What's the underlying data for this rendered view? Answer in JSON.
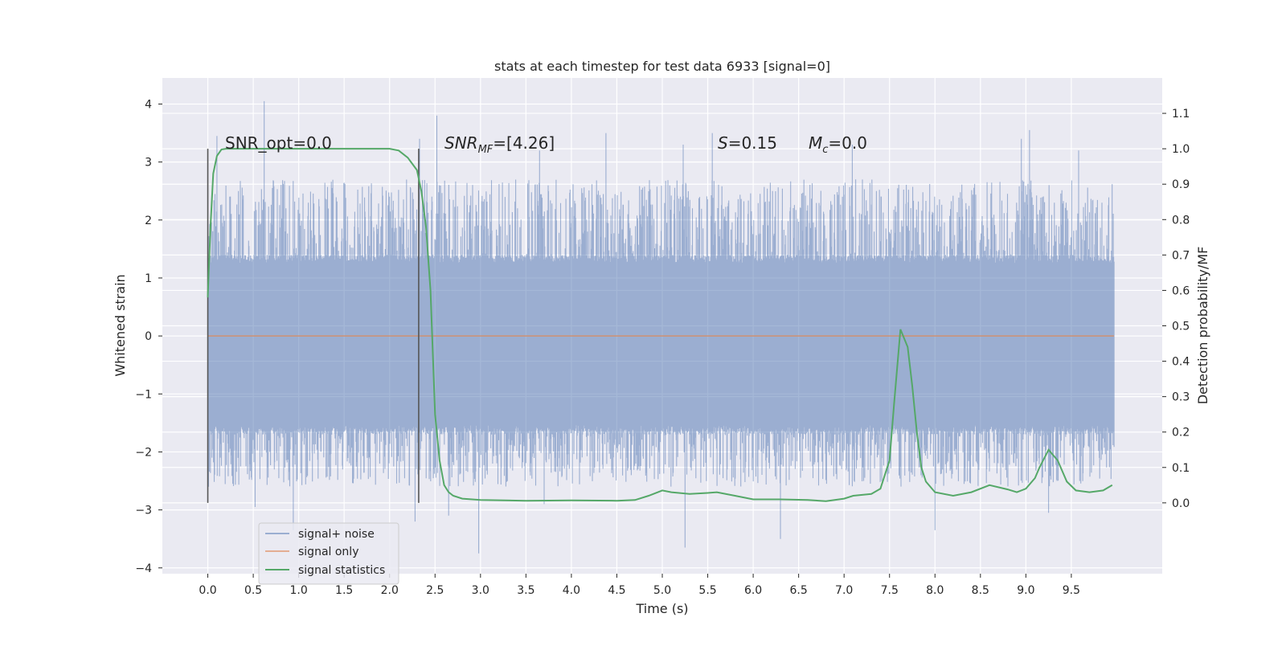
{
  "chart_data": {
    "type": "line",
    "title": "stats at each timestep for test data 6933 [signal=0]",
    "xlabel": "Time (s)",
    "ylabel_left": "Whitened strain",
    "ylabel_right": "Detection probability/MF",
    "xlim": [
      -0.5,
      10.5
    ],
    "ylim_left": [
      -4.1,
      4.45
    ],
    "ylim_right": [
      -0.2,
      1.2
    ],
    "x_ticks": [
      "0.0",
      "0.5",
      "1.0",
      "1.5",
      "2.0",
      "2.5",
      "3.0",
      "3.5",
      "4.0",
      "4.5",
      "5.0",
      "5.5",
      "6.0",
      "6.5",
      "7.0",
      "7.5",
      "8.0",
      "8.5",
      "9.0",
      "9.5"
    ],
    "y_ticks_left": [
      "−4",
      "−3",
      "−2",
      "−1",
      "0",
      "1",
      "2",
      "3",
      "4"
    ],
    "y_ticks_right": [
      "0.0",
      "0.1",
      "0.2",
      "0.3",
      "0.4",
      "0.5",
      "0.6",
      "0.7",
      "0.8",
      "0.9",
      "1.0",
      "1.1"
    ],
    "grid": true,
    "legend_placement": "lower-left",
    "legend": [
      {
        "label": "signal+ noise",
        "color": "#4c72b0"
      },
      {
        "label": "signal only",
        "color": "#dd8452"
      },
      {
        "label": "signal statistics",
        "color": "#55a868"
      }
    ],
    "annotations": [
      {
        "text": "SNR_opt=0.0"
      },
      {
        "text_main": "SNR",
        "text_sub": "MF",
        "text_rest": "=[4.26]"
      },
      {
        "text_main": "S",
        "text_rest": "=0.15"
      },
      {
        "text_main": "M",
        "text_sub": "c",
        "text_rest": "=0.0"
      }
    ],
    "vertical_markers": [
      0.0,
      2.32
    ],
    "series": [
      {
        "name": "signal+ noise",
        "axis": "left",
        "color": "#4c72b0",
        "x_range": [
          0.0,
          9.97
        ],
        "typical_band": [
          -1.7,
          1.4
        ],
        "peaks": [
          {
            "x": 0.62,
            "y": 4.05
          },
          {
            "x": 2.52,
            "y": 3.8
          },
          {
            "x": 0.1,
            "y": 3.45
          },
          {
            "x": 2.33,
            "y": 3.4
          },
          {
            "x": 4.38,
            "y": 3.5
          },
          {
            "x": 5.55,
            "y": 3.5
          },
          {
            "x": 9.04,
            "y": 3.55
          },
          {
            "x": 8.95,
            "y": 3.4
          },
          {
            "x": 7.09,
            "y": 3.3
          },
          {
            "x": 5.23,
            "y": 3.3
          },
          {
            "x": 9.58,
            "y": 3.2
          },
          {
            "x": 3.65,
            "y": 3.2
          },
          {
            "x": 0.94,
            "y": -3.35
          },
          {
            "x": 2.98,
            "y": -3.75
          },
          {
            "x": 5.25,
            "y": -3.65
          },
          {
            "x": 6.3,
            "y": -3.5
          },
          {
            "x": 8.0,
            "y": -3.35
          },
          {
            "x": 9.25,
            "y": -3.05
          },
          {
            "x": 2.28,
            "y": -3.2
          },
          {
            "x": 0.52,
            "y": -2.95
          },
          {
            "x": 2.65,
            "y": -3.1
          },
          {
            "x": 3.7,
            "y": -2.9
          }
        ]
      },
      {
        "name": "signal only",
        "axis": "left",
        "color": "#dd8452",
        "x": [
          0.0,
          9.97
        ],
        "y": [
          0.0,
          0.0
        ]
      },
      {
        "name": "signal statistics",
        "axis": "right",
        "color": "#55a868",
        "x": [
          0.0,
          0.03,
          0.06,
          0.1,
          0.15,
          0.2,
          0.3,
          0.5,
          1.0,
          1.5,
          2.0,
          2.1,
          2.2,
          2.3,
          2.35,
          2.4,
          2.45,
          2.5,
          2.55,
          2.6,
          2.65,
          2.7,
          2.8,
          3.0,
          3.5,
          4.0,
          4.5,
          4.7,
          4.85,
          5.0,
          5.1,
          5.3,
          5.5,
          5.6,
          5.8,
          6.0,
          6.3,
          6.6,
          6.8,
          7.0,
          7.1,
          7.3,
          7.4,
          7.5,
          7.55,
          7.62,
          7.7,
          7.75,
          7.8,
          7.85,
          7.9,
          8.0,
          8.2,
          8.4,
          8.6,
          8.8,
          8.9,
          9.0,
          9.1,
          9.15,
          9.25,
          9.35,
          9.45,
          9.55,
          9.7,
          9.85,
          9.95
        ],
        "y": [
          0.58,
          0.78,
          0.93,
          0.98,
          0.998,
          1.0,
          1.0,
          1.0,
          1.0,
          1.0,
          1.0,
          0.995,
          0.975,
          0.94,
          0.88,
          0.78,
          0.6,
          0.25,
          0.12,
          0.05,
          0.03,
          0.02,
          0.012,
          0.008,
          0.006,
          0.007,
          0.006,
          0.008,
          0.02,
          0.035,
          0.03,
          0.025,
          0.028,
          0.03,
          0.02,
          0.01,
          0.01,
          0.008,
          0.005,
          0.012,
          0.02,
          0.025,
          0.04,
          0.12,
          0.28,
          0.49,
          0.44,
          0.33,
          0.2,
          0.1,
          0.06,
          0.03,
          0.02,
          0.03,
          0.05,
          0.038,
          0.03,
          0.04,
          0.07,
          0.1,
          0.15,
          0.12,
          0.06,
          0.035,
          0.03,
          0.035,
          0.05
        ]
      }
    ]
  }
}
